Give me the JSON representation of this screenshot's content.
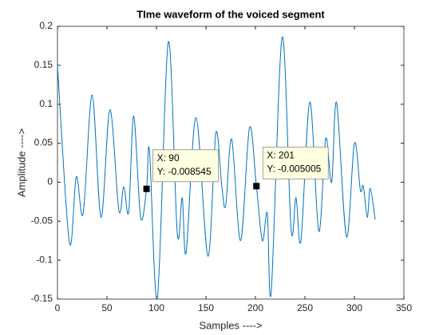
{
  "chart_data": {
    "type": "line",
    "title": "TIme waveform of the voiced segment",
    "x_label": "Samples ---->",
    "y_label": "Amplitude ---->",
    "x": [
      0,
      12,
      19,
      26,
      35,
      44,
      53,
      62,
      67,
      72,
      77,
      84,
      90,
      93,
      101,
      112,
      121,
      126,
      130,
      140,
      152,
      160,
      166,
      170,
      176,
      185,
      194,
      201,
      207,
      212,
      216,
      227,
      236,
      241,
      246,
      255,
      264,
      271,
      277,
      282,
      292,
      300,
      306,
      309,
      313,
      316,
      321
    ],
    "series": [
      {
        "name": "waveform",
        "color": "#0072bd",
        "values": [
          0.15,
          -0.077,
          0.007,
          -0.04,
          0.112,
          -0.045,
          0.093,
          -0.036,
          -0.006,
          -0.038,
          0.085,
          -0.045,
          -0.008545,
          0.04,
          -0.148,
          0.18,
          -0.065,
          -0.02,
          -0.09,
          0.083,
          -0.095,
          0.063,
          -0.005,
          -0.03,
          0.055,
          -0.075,
          0.07,
          -0.005005,
          -0.075,
          -0.04,
          -0.14,
          0.186,
          -0.06,
          -0.02,
          -0.075,
          0.103,
          -0.063,
          0.056,
          0.0,
          0.102,
          -0.07,
          0.05,
          -0.01,
          -0.005,
          -0.045,
          -0.008,
          -0.048
        ]
      }
    ],
    "xlim": [
      0,
      350
    ],
    "ylim": [
      -0.15,
      0.2
    ],
    "xticks": [
      0,
      50,
      100,
      150,
      200,
      250,
      300,
      350
    ],
    "yticks": [
      -0.15,
      -0.1,
      -0.05,
      0,
      0.05,
      0.1,
      0.15,
      0.2
    ],
    "annotations": [
      {
        "x": 90,
        "y": -0.008545,
        "text": [
          "X: 90",
          "Y: -0.008545"
        ]
      },
      {
        "x": 201,
        "y": -0.005005,
        "text": [
          "X: 201",
          "Y: -0.005005"
        ]
      }
    ]
  }
}
